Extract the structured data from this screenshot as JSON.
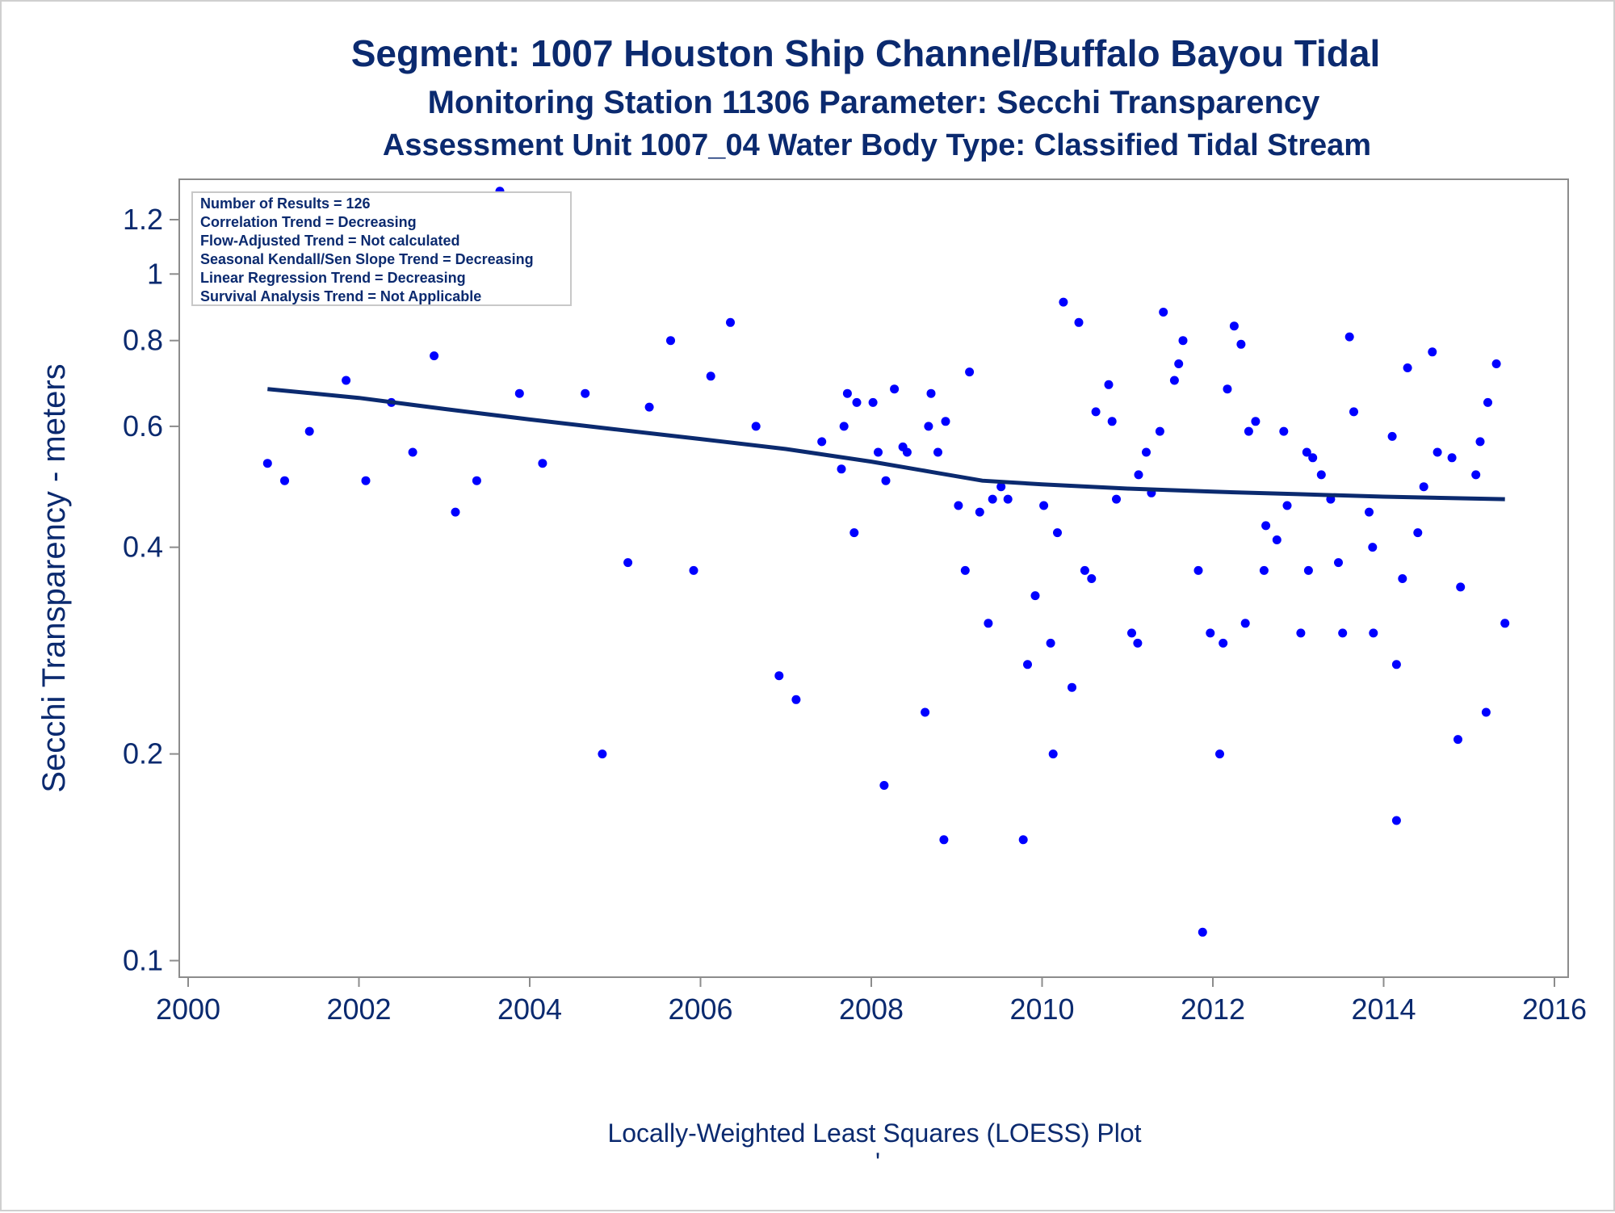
{
  "titles": {
    "line1": "Segment: 1007  Houston Ship Channel/Buffalo Bayou Tidal",
    "line2": "Monitoring Station 11306 Parameter: Secchi Transparency",
    "line3": "Assessment Unit 1007_04   Water Body Type: Classified Tidal Stream"
  },
  "stats_box": [
    "Number of Results = 126",
    "Correlation Trend = Decreasing",
    "Flow-Adjusted Trend = Not calculated",
    "Seasonal Kendall/Sen Slope Trend = Decreasing",
    "Linear Regression Trend = Decreasing",
    "Survival Analysis Trend = Not Applicable"
  ],
  "footer": {
    "caption": "Locally-Weighted Least Squares (LOESS) Plot",
    "mark": "'"
  },
  "colors": {
    "text": "#0b2a6f",
    "points": "#0000ff",
    "loess_line": "#0b2a6f",
    "axis": "#8c8c8c"
  },
  "chart_data": {
    "type": "scatter",
    "ylabel": "Secchi Transparency - meters",
    "xlabel": "",
    "y_scale": "log",
    "xlim": [
      2000,
      2016
    ],
    "ylim": [
      0.0972,
      1.33
    ],
    "x_ticks": [
      2000,
      2002,
      2004,
      2006,
      2008,
      2010,
      2012,
      2014,
      2016
    ],
    "y_ticks": [
      0.1,
      0.2,
      0.4,
      0.6,
      0.8,
      1,
      1.2
    ],
    "grid": false,
    "points": [
      [
        2000.93,
        0.53
      ],
      [
        2001.13,
        0.5
      ],
      [
        2001.42,
        0.59
      ],
      [
        2001.65,
        1.1
      ],
      [
        2001.85,
        0.7
      ],
      [
        2002.08,
        0.5
      ],
      [
        2002.38,
        0.65
      ],
      [
        2002.63,
        0.55
      ],
      [
        2002.88,
        0.76
      ],
      [
        2003.13,
        0.45
      ],
      [
        2003.38,
        0.5
      ],
      [
        2003.65,
        1.32
      ],
      [
        2003.88,
        0.67
      ],
      [
        2004.15,
        0.53
      ],
      [
        2004.37,
        0.92
      ],
      [
        2004.65,
        0.67
      ],
      [
        2004.85,
        0.2
      ],
      [
        2005.15,
        0.38
      ],
      [
        2005.4,
        0.64
      ],
      [
        2005.65,
        0.8
      ],
      [
        2005.92,
        0.37
      ],
      [
        2006.12,
        0.71
      ],
      [
        2006.35,
        0.85
      ],
      [
        2006.65,
        0.6
      ],
      [
        2006.92,
        0.26
      ],
      [
        2007.12,
        0.24
      ],
      [
        2007.42,
        0.57
      ],
      [
        2007.65,
        0.52
      ],
      [
        2007.68,
        0.6
      ],
      [
        2007.72,
        0.67
      ],
      [
        2007.8,
        0.42
      ],
      [
        2007.83,
        0.65
      ],
      [
        2008.02,
        0.65
      ],
      [
        2008.08,
        0.55
      ],
      [
        2008.15,
        0.18
      ],
      [
        2008.17,
        0.5
      ],
      [
        2008.27,
        0.68
      ],
      [
        2008.37,
        0.56
      ],
      [
        2008.42,
        0.55
      ],
      [
        2008.63,
        0.23
      ],
      [
        2008.67,
        0.6
      ],
      [
        2008.7,
        0.67
      ],
      [
        2008.78,
        0.55
      ],
      [
        2008.85,
        0.15
      ],
      [
        2008.87,
        0.61
      ],
      [
        2009.02,
        0.46
      ],
      [
        2009.1,
        0.37
      ],
      [
        2009.15,
        0.72
      ],
      [
        2009.27,
        0.45
      ],
      [
        2009.37,
        0.31
      ],
      [
        2009.42,
        0.47
      ],
      [
        2009.52,
        0.49
      ],
      [
        2009.6,
        0.47
      ],
      [
        2009.78,
        0.15
      ],
      [
        2009.83,
        0.27
      ],
      [
        2009.92,
        0.34
      ],
      [
        2010.02,
        0.46
      ],
      [
        2010.1,
        0.29
      ],
      [
        2010.13,
        0.2
      ],
      [
        2010.18,
        0.42
      ],
      [
        2010.25,
        0.91
      ],
      [
        2010.35,
        0.25
      ],
      [
        2010.43,
        0.85
      ],
      [
        2010.5,
        0.37
      ],
      [
        2010.58,
        0.36
      ],
      [
        2010.63,
        0.63
      ],
      [
        2010.78,
        0.69
      ],
      [
        2010.82,
        0.61
      ],
      [
        2010.87,
        0.47
      ],
      [
        2011.05,
        0.3
      ],
      [
        2011.12,
        0.29
      ],
      [
        2011.13,
        0.51
      ],
      [
        2011.22,
        0.55
      ],
      [
        2011.28,
        0.48
      ],
      [
        2011.38,
        0.59
      ],
      [
        2011.42,
        0.88
      ],
      [
        2011.55,
        0.7
      ],
      [
        2011.6,
        0.74
      ],
      [
        2011.65,
        0.8
      ],
      [
        2011.83,
        0.37
      ],
      [
        2011.88,
        0.11
      ],
      [
        2011.97,
        0.3
      ],
      [
        2012.08,
        0.2
      ],
      [
        2012.12,
        0.29
      ],
      [
        2012.17,
        0.68
      ],
      [
        2012.25,
        0.84
      ],
      [
        2012.33,
        0.79
      ],
      [
        2012.38,
        0.31
      ],
      [
        2012.42,
        0.59
      ],
      [
        2012.5,
        0.61
      ],
      [
        2012.6,
        0.37
      ],
      [
        2012.62,
        0.43
      ],
      [
        2012.75,
        0.41
      ],
      [
        2012.83,
        0.59
      ],
      [
        2012.87,
        0.46
      ],
      [
        2013.03,
        0.3
      ],
      [
        2013.1,
        0.55
      ],
      [
        2013.12,
        0.37
      ],
      [
        2013.17,
        0.54
      ],
      [
        2013.27,
        0.51
      ],
      [
        2013.38,
        0.47
      ],
      [
        2013.47,
        0.38
      ],
      [
        2013.52,
        0.3
      ],
      [
        2013.6,
        0.81
      ],
      [
        2013.65,
        0.63
      ],
      [
        2013.83,
        0.45
      ],
      [
        2013.87,
        0.4
      ],
      [
        2013.88,
        0.3
      ],
      [
        2014.1,
        0.58
      ],
      [
        2014.15,
        0.27
      ],
      [
        2014.15,
        0.16
      ],
      [
        2014.22,
        0.36
      ],
      [
        2014.28,
        0.73
      ],
      [
        2014.4,
        0.42
      ],
      [
        2014.47,
        0.49
      ],
      [
        2014.57,
        0.77
      ],
      [
        2014.63,
        0.55
      ],
      [
        2014.8,
        0.54
      ],
      [
        2014.87,
        0.21
      ],
      [
        2014.9,
        0.35
      ],
      [
        2015.08,
        0.51
      ],
      [
        2015.13,
        0.57
      ],
      [
        2015.22,
        0.65
      ],
      [
        2015.2,
        0.23
      ],
      [
        2015.32,
        0.74
      ],
      [
        2015.42,
        0.31
      ]
    ],
    "loess_line": [
      [
        2000.93,
        0.68
      ],
      [
        2002.0,
        0.66
      ],
      [
        2003.0,
        0.636
      ],
      [
        2004.0,
        0.614
      ],
      [
        2005.0,
        0.594
      ],
      [
        2006.0,
        0.575
      ],
      [
        2007.0,
        0.556
      ],
      [
        2008.0,
        0.533
      ],
      [
        2008.7,
        0.515
      ],
      [
        2009.3,
        0.5
      ],
      [
        2010.0,
        0.494
      ],
      [
        2011.0,
        0.487
      ],
      [
        2012.0,
        0.482
      ],
      [
        2013.0,
        0.478
      ],
      [
        2014.0,
        0.474
      ],
      [
        2015.42,
        0.47
      ]
    ]
  }
}
